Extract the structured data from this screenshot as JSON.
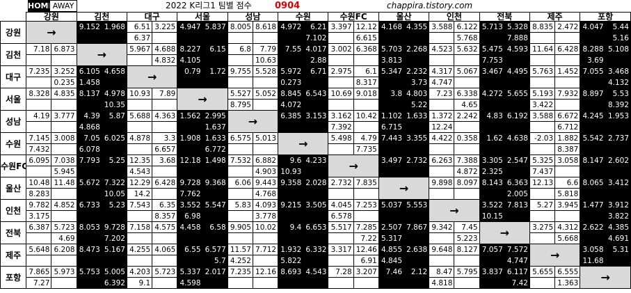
{
  "header": {
    "home_label": "HOME",
    "away_label": "AWAY",
    "title": "2022 K리그1  팀별 점수",
    "date": "0904",
    "site": "chappira.tistory.com"
  },
  "teams": [
    "강원",
    "김천",
    "대구",
    "서울",
    "성남",
    "수원",
    "수원FC",
    "울산",
    "인천",
    "전북",
    "제주",
    "포항"
  ],
  "diag_arrow": "→",
  "rows": [
    [
      [
        "",
        ""
      ],
      [
        "9.152",
        "1.968"
      ],
      [
        "6.51",
        "3.225"
      ],
      [
        "4.947",
        "5.837"
      ],
      [
        "8.005",
        "8.618"
      ],
      [
        "4.972",
        "6.21"
      ],
      [
        "3.397",
        "12.12"
      ],
      [
        "4.168",
        "4.355"
      ],
      [
        "3.588",
        "6.122"
      ],
      [
        "5.713",
        "5.328"
      ],
      [
        "8.835",
        "2.472"
      ],
      [
        "4.047",
        "5.44"
      ]
    ],
    [
      [
        "",
        ""
      ],
      [
        "",
        ""
      ],
      [
        "6.37",
        ""
      ],
      [
        "",
        ""
      ],
      [
        "",
        ""
      ],
      [
        "",
        "7.102"
      ],
      [
        "",
        "6.615"
      ],
      [
        "",
        ""
      ],
      [
        "",
        "5.768"
      ],
      [
        "",
        "7.888"
      ],
      [
        "",
        ""
      ],
      [
        "",
        "5.16"
      ]
    ],
    [
      [
        "7.18",
        "6.873"
      ],
      [
        "",
        ""
      ],
      [
        "5.967",
        "4.688"
      ],
      [
        "8.227",
        "6.15"
      ],
      [
        "6.8",
        "7.79"
      ],
      [
        "7.55",
        "4.017"
      ],
      [
        "3.002",
        "6.368"
      ],
      [
        "5.703",
        "2.268"
      ],
      [
        "4.523",
        "5.632"
      ],
      [
        "5.475",
        "4.593"
      ],
      [
        "11.64",
        "6.428"
      ],
      [
        "8.288",
        "5.108"
      ]
    ],
    [
      [
        "",
        ""
      ],
      [
        "",
        ""
      ],
      [
        "",
        "4.832"
      ],
      [
        "4.105",
        ""
      ],
      [
        "",
        "10.63"
      ],
      [
        "",
        "2.88"
      ],
      [
        "",
        ""
      ],
      [
        "3.813",
        ""
      ],
      [
        "",
        ""
      ],
      [
        "7.753",
        ""
      ],
      [
        "",
        ""
      ],
      [
        "3.69",
        ""
      ]
    ],
    [
      [
        "7.235",
        "3.252"
      ],
      [
        "6.105",
        "4.658"
      ],
      [
        "",
        ""
      ],
      [
        "0.79",
        "1.72"
      ],
      [
        "9.755",
        "5.528"
      ],
      [
        "5.972",
        "6.71"
      ],
      [
        "2.975",
        "6.1"
      ],
      [
        "5.347",
        "2.232"
      ],
      [
        "4.317",
        "5.067"
      ],
      [
        "3.467",
        "4.495"
      ],
      [
        "5.763",
        "1.452"
      ],
      [
        "7.055",
        "3.468"
      ]
    ],
    [
      [
        "",
        "0.235"
      ],
      [
        "1.458",
        ""
      ],
      [
        "",
        ""
      ],
      [
        "",
        ""
      ],
      [
        "",
        ""
      ],
      [
        "0.273",
        ""
      ],
      [
        "",
        "8.317"
      ],
      [
        "",
        "3.73"
      ],
      [
        "4.747",
        ""
      ],
      [
        "",
        ""
      ],
      [
        "",
        ""
      ],
      [
        "",
        "4.132"
      ]
    ],
    [
      [
        "8.328",
        "4.835"
      ],
      [
        "8.137",
        "4.978"
      ],
      [
        "10.93",
        "7.89"
      ],
      [
        "",
        ""
      ],
      [
        "5.527",
        "5.052"
      ],
      [
        "8.845",
        "6.543"
      ],
      [
        "10.69",
        "9.018"
      ],
      [
        "3.8",
        "4.803"
      ],
      [
        "7.23",
        "6.338"
      ],
      [
        "4.272",
        "5.655"
      ],
      [
        "5.193",
        "7.932"
      ],
      [
        "8.897",
        "5.53"
      ]
    ],
    [
      [
        "",
        ""
      ],
      [
        "",
        "10.35"
      ],
      [
        "",
        ""
      ],
      [
        "",
        ""
      ],
      [
        "8.795",
        ""
      ],
      [
        "4.072",
        ""
      ],
      [
        "",
        ""
      ],
      [
        "",
        "5.22"
      ],
      [
        "",
        "4.65"
      ],
      [
        "",
        ""
      ],
      [
        "3.422",
        ""
      ],
      [
        "",
        "8.392"
      ]
    ],
    [
      [
        "4.19",
        "3.777"
      ],
      [
        "4.39",
        "5.87"
      ],
      [
        "5.688",
        "4.363"
      ],
      [
        "1.562",
        "2.995"
      ],
      [
        "",
        ""
      ],
      [
        "6.385",
        "3.153"
      ],
      [
        "3.162",
        "10.42"
      ],
      [
        "1.102",
        "1.633"
      ],
      [
        "1.372",
        "2.242"
      ],
      [
        "4.83",
        "6.192"
      ],
      [
        "3.588",
        "6.672"
      ],
      [
        "4.245",
        "1.953"
      ]
    ],
    [
      [
        "",
        ""
      ],
      [
        "4.868",
        ""
      ],
      [
        "",
        ""
      ],
      [
        "",
        "1.637"
      ],
      [
        "",
        ""
      ],
      [
        "",
        ""
      ],
      [
        "7.392",
        ""
      ],
      [
        "6.715",
        ""
      ],
      [
        "12.24",
        ""
      ],
      [
        "",
        ""
      ],
      [
        "",
        "6.712"
      ],
      [
        "",
        ""
      ]
    ],
    [
      [
        "7.145",
        "3.008"
      ],
      [
        "7.05",
        "6.025"
      ],
      [
        "4.878",
        "3.3"
      ],
      [
        "1.908",
        "1.633"
      ],
      [
        "6.575",
        "5.013"
      ],
      [
        "",
        ""
      ],
      [
        "5.498",
        "4.79"
      ],
      [
        "7.443",
        "3.355"
      ],
      [
        "4.422",
        "0.358"
      ],
      [
        "1.62",
        "4.638"
      ],
      [
        "-2.03",
        "1.882"
      ],
      [
        "5.542",
        "2.737"
      ]
    ],
    [
      [
        "7.432",
        ""
      ],
      [
        "6.078",
        ""
      ],
      [
        "",
        "6.657"
      ],
      [
        "",
        "6.772"
      ],
      [
        "",
        ""
      ],
      [
        "",
        ""
      ],
      [
        "",
        "7.735"
      ],
      [
        "",
        ""
      ],
      [
        "",
        ""
      ],
      [
        "",
        ""
      ],
      [
        "",
        "8.387"
      ],
      [
        "",
        ""
      ]
    ],
    [
      [
        "6.095",
        "7.038"
      ],
      [
        "7.793",
        "5.25"
      ],
      [
        "12.35",
        "3.68"
      ],
      [
        "12.18",
        "1.498"
      ],
      [
        "7.532",
        "6.882"
      ],
      [
        "9.6",
        "4.233"
      ],
      [
        "",
        ""
      ],
      [
        "3.497",
        "2.732"
      ],
      [
        "6.263",
        "7.388"
      ],
      [
        "3.305",
        "2.547"
      ],
      [
        "5.325",
        "3.058"
      ],
      [
        "8.147",
        "2.602"
      ]
    ],
    [
      [
        "",
        "5.945"
      ],
      [
        "",
        ""
      ],
      [
        "4.543",
        ""
      ],
      [
        "",
        ""
      ],
      [
        "",
        "4.903"
      ],
      [
        "10.93",
        ""
      ],
      [
        "",
        ""
      ],
      [
        "",
        ""
      ],
      [
        "",
        "4.872"
      ],
      [
        "2.325",
        ""
      ],
      [
        "7.437",
        ""
      ],
      [
        "",
        ""
      ]
    ],
    [
      [
        "10.48",
        "11.48"
      ],
      [
        "5.672",
        "7.322"
      ],
      [
        "12.29",
        "6.428"
      ],
      [
        "9.728",
        "9.368"
      ],
      [
        "6.06",
        "9.443"
      ],
      [
        "9.358",
        "2.028"
      ],
      [
        "2.732",
        "7.835"
      ],
      [
        "",
        ""
      ],
      [
        "9.898",
        "8.097"
      ],
      [
        "8.143",
        "6.363"
      ],
      [
        "12.13",
        "6.6"
      ],
      [
        "8.065",
        "3.412"
      ]
    ],
    [
      [
        "8.283",
        ""
      ],
      [
        "",
        "10.05"
      ],
      [
        "14.2",
        ""
      ],
      [
        "7.762",
        ""
      ],
      [
        "",
        "4.768"
      ],
      [
        "",
        ""
      ],
      [
        "",
        ""
      ],
      [
        "",
        ""
      ],
      [
        "",
        ""
      ],
      [
        "",
        "2.005"
      ],
      [
        "",
        "5.818"
      ],
      [
        "",
        ""
      ]
    ],
    [
      [
        "9.782",
        "4.852"
      ],
      [
        "6.733",
        "5.23"
      ],
      [
        "7.543",
        "6.35"
      ],
      [
        "3.552",
        "5.547"
      ],
      [
        "5.83",
        "4.093"
      ],
      [
        "9.215",
        "3.505"
      ],
      [
        "4.045",
        "7.253"
      ],
      [
        "5.037",
        "5.553"
      ],
      [
        "",
        ""
      ],
      [
        "3.522",
        "7.813"
      ],
      [
        "5.27",
        "3.945"
      ],
      [
        "1.477",
        "3.912"
      ]
    ],
    [
      [
        "3.175",
        ""
      ],
      [
        "",
        ""
      ],
      [
        "",
        "8.357"
      ],
      [
        "6.98",
        ""
      ],
      [
        "",
        "3.778"
      ],
      [
        "",
        ""
      ],
      [
        "6.578",
        ""
      ],
      [
        "",
        ""
      ],
      [
        "",
        ""
      ],
      [
        "10.15",
        ""
      ],
      [
        "",
        ""
      ],
      [
        "",
        "3.822"
      ]
    ],
    [
      [
        "6.387",
        "5.723"
      ],
      [
        "8.053",
        "9.728"
      ],
      [
        "7.158",
        "4.575"
      ],
      [
        "4.458",
        "6.58"
      ],
      [
        "9.905",
        "10.02"
      ],
      [
        "9.4",
        "6.653"
      ],
      [
        "5.517",
        "7.285"
      ],
      [
        "2.507",
        "7.867"
      ],
      [
        "9.342",
        "7.45"
      ],
      [
        "",
        ""
      ],
      [
        "3.275",
        "4.312"
      ],
      [
        "2.622",
        "4.385"
      ]
    ],
    [
      [
        "",
        "4.69"
      ],
      [
        "",
        "7.202"
      ],
      [
        "",
        ""
      ],
      [
        "",
        ""
      ],
      [
        "",
        ""
      ],
      [
        "",
        ""
      ],
      [
        "",
        "7.22"
      ],
      [
        "5.317",
        ""
      ],
      [
        "",
        "5.223"
      ],
      [
        "",
        ""
      ],
      [
        "",
        "5.668"
      ],
      [
        "",
        "4.691"
      ]
    ],
    [
      [
        "5.648",
        "6.208"
      ],
      [
        "8.473",
        "5.167"
      ],
      [
        "4.255",
        "4.065"
      ],
      [
        "6.55",
        "6.577"
      ],
      [
        "11.57",
        "7.712"
      ],
      [
        "1.932",
        "6.332"
      ],
      [
        "3.317",
        "12.46"
      ],
      [
        "4.855",
        "2.638"
      ],
      [
        "9.648",
        "8.127"
      ],
      [
        "7.057",
        "7.572"
      ],
      [
        "",
        ""
      ],
      [
        "3.058",
        "5.31"
      ]
    ],
    [
      [
        "",
        ""
      ],
      [
        "",
        ""
      ],
      [
        "",
        ""
      ],
      [
        "",
        "5.7"
      ],
      [
        "4.252",
        ""
      ],
      [
        "5.822",
        ""
      ],
      [
        "",
        "6.91"
      ],
      [
        "4.845",
        ""
      ],
      [
        "",
        ""
      ],
      [
        "",
        "4.747"
      ],
      [
        "",
        ""
      ],
      [
        "11.68",
        ""
      ]
    ],
    [
      [
        "7.865",
        "5.973"
      ],
      [
        "5.753",
        "5.005"
      ],
      [
        "4.203",
        "5.723"
      ],
      [
        "5.337",
        "2.017"
      ],
      [
        "7.235",
        "12.16"
      ],
      [
        "8.693",
        "4.543"
      ],
      [
        "7.28",
        "3.207"
      ],
      [
        "7.46",
        "2.12"
      ],
      [
        "8.47",
        "5.795"
      ],
      [
        "3.837",
        "6.117"
      ],
      [
        "5.655",
        "6.555"
      ],
      [
        "",
        ""
      ]
    ],
    [
      [
        "7.27",
        ""
      ],
      [
        "",
        "6.392"
      ],
      [
        "9.1",
        ""
      ],
      [
        "4.598",
        ""
      ],
      [
        "",
        ""
      ],
      [
        "",
        ""
      ],
      [
        "",
        ""
      ],
      [
        "",
        ""
      ],
      [
        "4.818",
        ""
      ],
      [
        "",
        "7.42"
      ],
      [
        "",
        "1.363"
      ],
      [
        "",
        ""
      ]
    ]
  ]
}
